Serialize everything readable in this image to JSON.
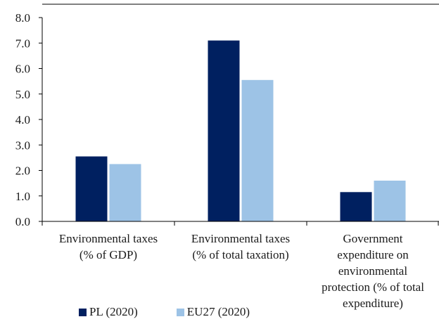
{
  "chart_data": {
    "type": "bar",
    "categories": [
      [
        "Environmental taxes",
        "(% of GDP)"
      ],
      [
        "Environmental taxes",
        "(% of total taxation)"
      ],
      [
        "Government",
        "expenditure on",
        "environmental",
        "protection (% of total",
        "expenditure)"
      ]
    ],
    "series": [
      {
        "name": "PL (2020)",
        "values": [
          2.55,
          7.1,
          1.15
        ],
        "color": "#002060"
      },
      {
        "name": "EU27 (2020)",
        "values": [
          2.25,
          5.55,
          1.6
        ],
        "color": "#9dc3e6"
      }
    ],
    "ylim": [
      0,
      8
    ],
    "yticks": [
      "0.0",
      "1.0",
      "2.0",
      "3.0",
      "4.0",
      "5.0",
      "6.0",
      "7.0",
      "8.0"
    ],
    "grid": false,
    "legend": "bottom",
    "title": "",
    "xlabel": "",
    "ylabel": ""
  }
}
